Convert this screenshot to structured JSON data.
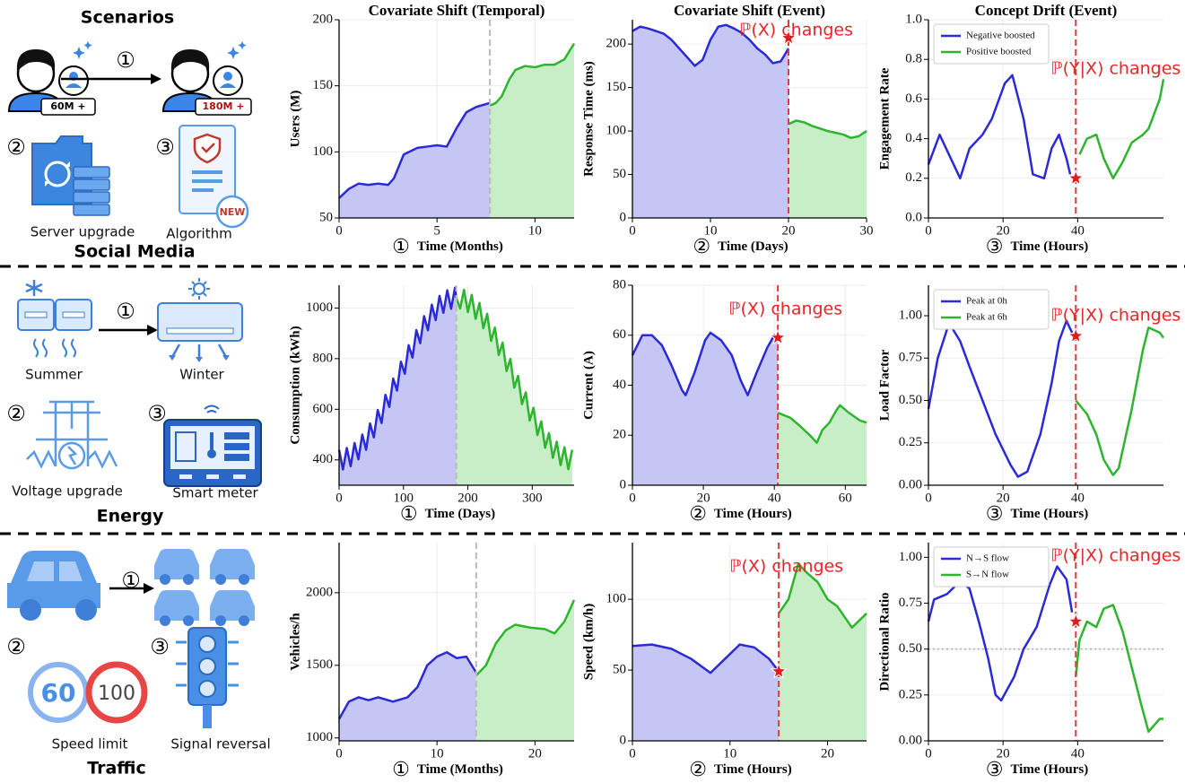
{
  "scenarios": {
    "title": "Scenarios",
    "rows": [
      {
        "name": "Social Media",
        "steps": [
          {
            "num": "①",
            "from": "60M +",
            "to": "180M +"
          },
          {
            "num": "②",
            "label": "Server upgrade"
          },
          {
            "num": "③",
            "label": "Algorithm",
            "badge": "NEW"
          }
        ]
      },
      {
        "name": "Energy",
        "steps": [
          {
            "num": "①",
            "from": "Summer",
            "to": "Winter"
          },
          {
            "num": "②",
            "label": "Voltage upgrade"
          },
          {
            "num": "③",
            "label": "Smart meter"
          }
        ]
      },
      {
        "name": "Traffic",
        "steps": [
          {
            "num": "①"
          },
          {
            "num": "②",
            "label": "Speed limit",
            "signs": [
              "60",
              "100"
            ]
          },
          {
            "num": "③",
            "label": "Signal reversal"
          }
        ]
      }
    ]
  },
  "chart_data": [
    {
      "type": "line",
      "title": "Covariate Shift (Temporal)",
      "step": "①",
      "xlabel": "Time (Months)",
      "ylabel": "Users (M)",
      "xlim": [
        0,
        12
      ],
      "ylim": [
        50,
        200
      ],
      "xticks": [
        0,
        5,
        10
      ],
      "yticks": [
        50,
        100,
        150,
        200
      ],
      "grid": true,
      "series": [
        {
          "color": "#2a2ad8",
          "fill": "#c6c6f4",
          "x": [
            0,
            0.5,
            1,
            1.5,
            2,
            2.5,
            2.8,
            3.3,
            4,
            4.5,
            5,
            5.5,
            6,
            6.5,
            7,
            7.7
          ],
          "values": [
            65,
            72,
            76,
            75,
            76,
            75,
            80,
            98,
            103,
            104,
            105,
            104,
            118,
            130,
            134,
            137
          ]
        },
        {
          "color": "#2db52d",
          "fill": "#c8eec8",
          "x": [
            7.7,
            8,
            8.3,
            8.7,
            9,
            9.5,
            10,
            10.5,
            11,
            11.5,
            12
          ],
          "values": [
            135,
            137,
            142,
            155,
            162,
            165,
            164,
            166,
            166,
            170,
            182
          ]
        }
      ],
      "vline": {
        "x": 7.7,
        "color": "#bbbbbb"
      }
    },
    {
      "type": "line",
      "title": "Covariate Shift (Event)",
      "step": "②",
      "xlabel": "Time (Days)",
      "ylabel": "Response Time (ms)",
      "xlim": [
        0,
        30
      ],
      "ylim": [
        0,
        228
      ],
      "xticks": [
        0,
        10,
        20,
        30
      ],
      "yticks": [
        0,
        50,
        100,
        150,
        200
      ],
      "grid": true,
      "series": [
        {
          "color": "#2a2ad8",
          "fill": "#c6c6f4",
          "x": [
            0,
            1,
            2,
            3,
            4,
            5,
            6,
            7,
            8,
            9,
            10,
            11,
            12,
            13,
            14,
            15,
            16,
            17,
            18,
            19,
            20
          ],
          "values": [
            215,
            220,
            218,
            215,
            212,
            205,
            195,
            185,
            175,
            182,
            205,
            220,
            222,
            218,
            213,
            205,
            195,
            188,
            178,
            180,
            195
          ]
        },
        {
          "color": "#2db52d",
          "fill": "#c8eec8",
          "x": [
            20,
            21,
            22,
            23,
            24,
            25,
            26,
            27,
            28,
            29,
            30
          ],
          "values": [
            108,
            112,
            110,
            106,
            103,
            100,
            98,
            96,
            92,
            94,
            100
          ]
        }
      ],
      "vline": {
        "x": 20,
        "color": "#e03a3a"
      },
      "star": {
        "x": 20,
        "y": 207
      },
      "annotation": "ℙ(X) changes"
    },
    {
      "type": "line",
      "title": "Concept Drift (Event)",
      "step": "③",
      "xlabel": "Time (Hours)",
      "ylabel": "Engagement Rate",
      "xlim": [
        0,
        63
      ],
      "ylim": [
        0,
        1
      ],
      "xticks": [
        0,
        20,
        40
      ],
      "yticks": [
        {
          "value": 0,
          "label": "0.0"
        },
        0.2,
        0.4,
        0.6,
        0.8,
        {
          "value": 1,
          "label": "1.0"
        }
      ],
      "grid": true,
      "legend": "upper left",
      "series": [
        {
          "name": "Negative boosted",
          "color": "#2a2ad8",
          "x": [
            0,
            3,
            8.5,
            11,
            14.5,
            17,
            20.5,
            22.5,
            25.5,
            28,
            31,
            33,
            35,
            37,
            38
          ],
          "values": [
            0.27,
            0.42,
            0.2,
            0.35,
            0.42,
            0.5,
            0.68,
            0.72,
            0.5,
            0.22,
            0.2,
            0.35,
            0.42,
            0.3,
            0.22
          ]
        },
        {
          "name": "Positive boosted",
          "color": "#2db52d",
          "x": [
            40.5,
            42.5,
            45,
            47,
            49.5,
            52,
            54.5,
            57.5,
            59,
            62,
            63
          ],
          "values": [
            0.32,
            0.4,
            0.42,
            0.3,
            0.2,
            0.28,
            0.38,
            0.42,
            0.45,
            0.6,
            0.7
          ]
        }
      ],
      "vline": {
        "x": 39.5,
        "color": "#e03a3a"
      },
      "star": {
        "x": 39.5,
        "y": 0.2
      },
      "annotation": "ℙ(Y|X) changes"
    },
    {
      "type": "line",
      "step": "①",
      "xlabel": "Time (Days)",
      "ylabel": "Consumption (kWh)",
      "xlim": [
        0,
        365
      ],
      "ylim": [
        300,
        1090
      ],
      "xticks": [
        0,
        100,
        200,
        300
      ],
      "yticks": [
        400,
        600,
        800,
        1000
      ],
      "grid": true,
      "series": [
        {
          "color": "#2a2ad8",
          "fill": "#c6c6f4",
          "x": [
            0,
            6,
            12,
            18,
            24,
            30,
            36,
            42,
            48,
            54,
            60,
            66,
            72,
            78,
            84,
            90,
            96,
            102,
            108,
            114,
            120,
            126,
            132,
            138,
            144,
            150,
            156,
            162,
            168,
            174,
            180,
            182
          ],
          "values": [
            440,
            362,
            447,
            375,
            467,
            402,
            500,
            440,
            544,
            489,
            597,
            546,
            657,
            609,
            721,
            674,
            788,
            740,
            853,
            804,
            913,
            861,
            968,
            912,
            1013,
            952,
            1048,
            981,
            1070,
            997,
            1080,
            1040
          ]
        },
        {
          "color": "#2db52d",
          "fill": "#c8eec8",
          "x": [
            182,
            188,
            194,
            200,
            206,
            212,
            218,
            224,
            230,
            236,
            242,
            248,
            254,
            260,
            266,
            272,
            278,
            284,
            290,
            296,
            302,
            308,
            314,
            320,
            326,
            332,
            338,
            344,
            350,
            356,
            362
          ],
          "values": [
            1040,
            998,
            1072,
            984,
            1052,
            957,
            1020,
            920,
            977,
            870,
            923,
            814,
            863,
            751,
            799,
            685,
            732,
            620,
            667,
            556,
            606,
            498,
            552,
            448,
            506,
            408,
            472,
            379,
            450,
            363,
            440
          ]
        }
      ],
      "vline": {
        "x": 182,
        "color": "#bbbbbb"
      }
    },
    {
      "type": "line",
      "step": "②",
      "xlabel": "Time (Hours)",
      "ylabel": "Current (A)",
      "xlim": [
        0,
        66
      ],
      "ylim": [
        0,
        80
      ],
      "xticks": [
        0,
        20,
        40,
        60
      ],
      "yticks": [
        0,
        20,
        40,
        60,
        80
      ],
      "grid": true,
      "series": [
        {
          "color": "#2a2ad8",
          "fill": "#c6c6f4",
          "x": [
            0,
            2.8,
            5.5,
            8.3,
            11,
            14,
            15,
            17.5,
            20.5,
            22,
            25,
            28,
            30.5,
            32.5,
            35,
            38,
            40,
            41
          ],
          "values": [
            52,
            60,
            60,
            56,
            48,
            38,
            36,
            45,
            58,
            61,
            58,
            52,
            42,
            36,
            45,
            55,
            60,
            58
          ]
        },
        {
          "color": "#2db52d",
          "fill": "#c8eec8",
          "x": [
            41,
            44.5,
            47,
            50,
            52,
            53.5,
            55.5,
            57.5,
            58.5,
            61,
            64,
            66
          ],
          "values": [
            29,
            27,
            24,
            20,
            17,
            22,
            25,
            30,
            32,
            29,
            26,
            25
          ]
        }
      ],
      "vline": {
        "x": 41,
        "color": "#e03a3a"
      },
      "star": {
        "x": 41,
        "y": 59
      },
      "annotation": "ℙ(X) changes"
    },
    {
      "type": "line",
      "step": "③",
      "xlabel": "Time (Hours)",
      "ylabel": "Load Factor",
      "xlim": [
        0,
        63
      ],
      "ylim": [
        0,
        1.18
      ],
      "xticks": [
        0,
        20,
        40
      ],
      "yticks": [
        {
          "value": 0,
          "label": "0.00"
        },
        0.25,
        {
          "value": 0.5,
          "label": "0.50"
        },
        0.75,
        {
          "value": 1,
          "label": "1.00"
        }
      ],
      "grid": true,
      "legend": "upper left",
      "series": [
        {
          "name": "Peak at 0h",
          "color": "#2a2ad8",
          "x": [
            0,
            2.5,
            5,
            6,
            8.5,
            11,
            14.5,
            18,
            22,
            24,
            26.5,
            30,
            33,
            35,
            37,
            38.5
          ],
          "values": [
            0.45,
            0.75,
            0.92,
            0.94,
            0.85,
            0.7,
            0.5,
            0.3,
            0.12,
            0.05,
            0.08,
            0.3,
            0.6,
            0.85,
            0.97,
            0.9
          ]
        },
        {
          "name": "Peak at 6h",
          "color": "#2db52d",
          "x": [
            39.5,
            42.5,
            45,
            47,
            49.5,
            51,
            54.5,
            57.5,
            59,
            62,
            63
          ],
          "values": [
            0.5,
            0.42,
            0.3,
            0.15,
            0.06,
            0.1,
            0.45,
            0.8,
            0.93,
            0.9,
            0.87
          ]
        }
      ],
      "vline": {
        "x": 39.5,
        "color": "#e03a3a"
      },
      "star": {
        "x": 39.5,
        "y": 0.88
      },
      "annotation": "ℙ(Y|X) changes"
    },
    {
      "type": "line",
      "step": "①",
      "xlabel": "Time (Months)",
      "ylabel": "Vehicles/h",
      "xlim": [
        0,
        24
      ],
      "ylim": [
        980,
        2345
      ],
      "xticks": [
        0,
        10,
        20
      ],
      "yticks": [
        1000,
        1500,
        2000
      ],
      "grid": true,
      "series": [
        {
          "color": "#2a2ad8",
          "fill": "#c6c6f4",
          "x": [
            0,
            1,
            2,
            3,
            4,
            5.5,
            7,
            8,
            9,
            10,
            11,
            12,
            13,
            14
          ],
          "values": [
            1130,
            1250,
            1280,
            1260,
            1280,
            1250,
            1280,
            1350,
            1500,
            1560,
            1590,
            1550,
            1560,
            1450
          ]
        },
        {
          "color": "#2db52d",
          "fill": "#c8eec8",
          "x": [
            14,
            15,
            16,
            17,
            18,
            19.5,
            21,
            22,
            23,
            24
          ],
          "values": [
            1430,
            1500,
            1650,
            1740,
            1780,
            1760,
            1750,
            1720,
            1800,
            1950
          ]
        }
      ],
      "vline": {
        "x": 14,
        "color": "#bbbbbb"
      }
    },
    {
      "type": "line",
      "step": "②",
      "xlabel": "Time (Hours)",
      "ylabel": "Speed (km/h)",
      "xlim": [
        0,
        24
      ],
      "ylim": [
        0,
        140
      ],
      "xticks": [
        0,
        10,
        20
      ],
      "yticks": [
        0,
        50,
        100
      ],
      "grid": true,
      "series": [
        {
          "color": "#2a2ad8",
          "fill": "#c6c6f4",
          "x": [
            0,
            2,
            4,
            6,
            8,
            9.5,
            11,
            12.5,
            14,
            15
          ],
          "values": [
            67,
            68,
            65,
            58,
            48,
            58,
            68,
            66,
            58,
            49
          ]
        },
        {
          "color": "#2db52d",
          "fill": "#c8eec8",
          "x": [
            15,
            16,
            17,
            18,
            19,
            20,
            21,
            22.5,
            24
          ],
          "values": [
            90,
            100,
            125,
            118,
            112,
            100,
            95,
            80,
            90
          ]
        }
      ],
      "vline": {
        "x": 15,
        "color": "#e03a3a"
      },
      "star": {
        "x": 15,
        "y": 49
      },
      "annotation": "ℙ(X) changes"
    },
    {
      "type": "line",
      "step": "③",
      "xlabel": "Time (Hours)",
      "ylabel": "Directional Ratio",
      "xlim": [
        0,
        63
      ],
      "ylim": [
        0,
        1.08
      ],
      "xticks": [
        0,
        20,
        40
      ],
      "yticks": [
        {
          "value": 0,
          "label": "0.00"
        },
        0.25,
        {
          "value": 0.5,
          "label": "0.50"
        },
        0.75,
        {
          "value": 1,
          "label": "1.00"
        }
      ],
      "grid": true,
      "legend": "upper left",
      "hline": 0.5,
      "series": [
        {
          "name": "N→S flow",
          "color": "#2a2ad8",
          "x": [
            0,
            1.5,
            5,
            8.5,
            11,
            13.5,
            16,
            18,
            19.5,
            23,
            25.5,
            29,
            32.5,
            34.5,
            37,
            38.5
          ],
          "values": [
            0.65,
            0.77,
            0.8,
            0.87,
            0.83,
            0.65,
            0.45,
            0.25,
            0.22,
            0.35,
            0.5,
            0.62,
            0.85,
            0.95,
            0.88,
            0.7
          ]
        },
        {
          "name": "S→N flow",
          "color": "#2db52d",
          "x": [
            39.5,
            40.5,
            42.5,
            45,
            47,
            49.5,
            52,
            54.5,
            57,
            59,
            62,
            63
          ],
          "values": [
            0.35,
            0.55,
            0.65,
            0.62,
            0.72,
            0.74,
            0.6,
            0.4,
            0.2,
            0.05,
            0.12,
            0.12
          ]
        }
      ],
      "vline": {
        "x": 39.5,
        "color": "#e03a3a"
      },
      "star": {
        "x": 39.5,
        "y": 0.65
      },
      "annotation": "ℙ(Y|X) changes"
    }
  ]
}
